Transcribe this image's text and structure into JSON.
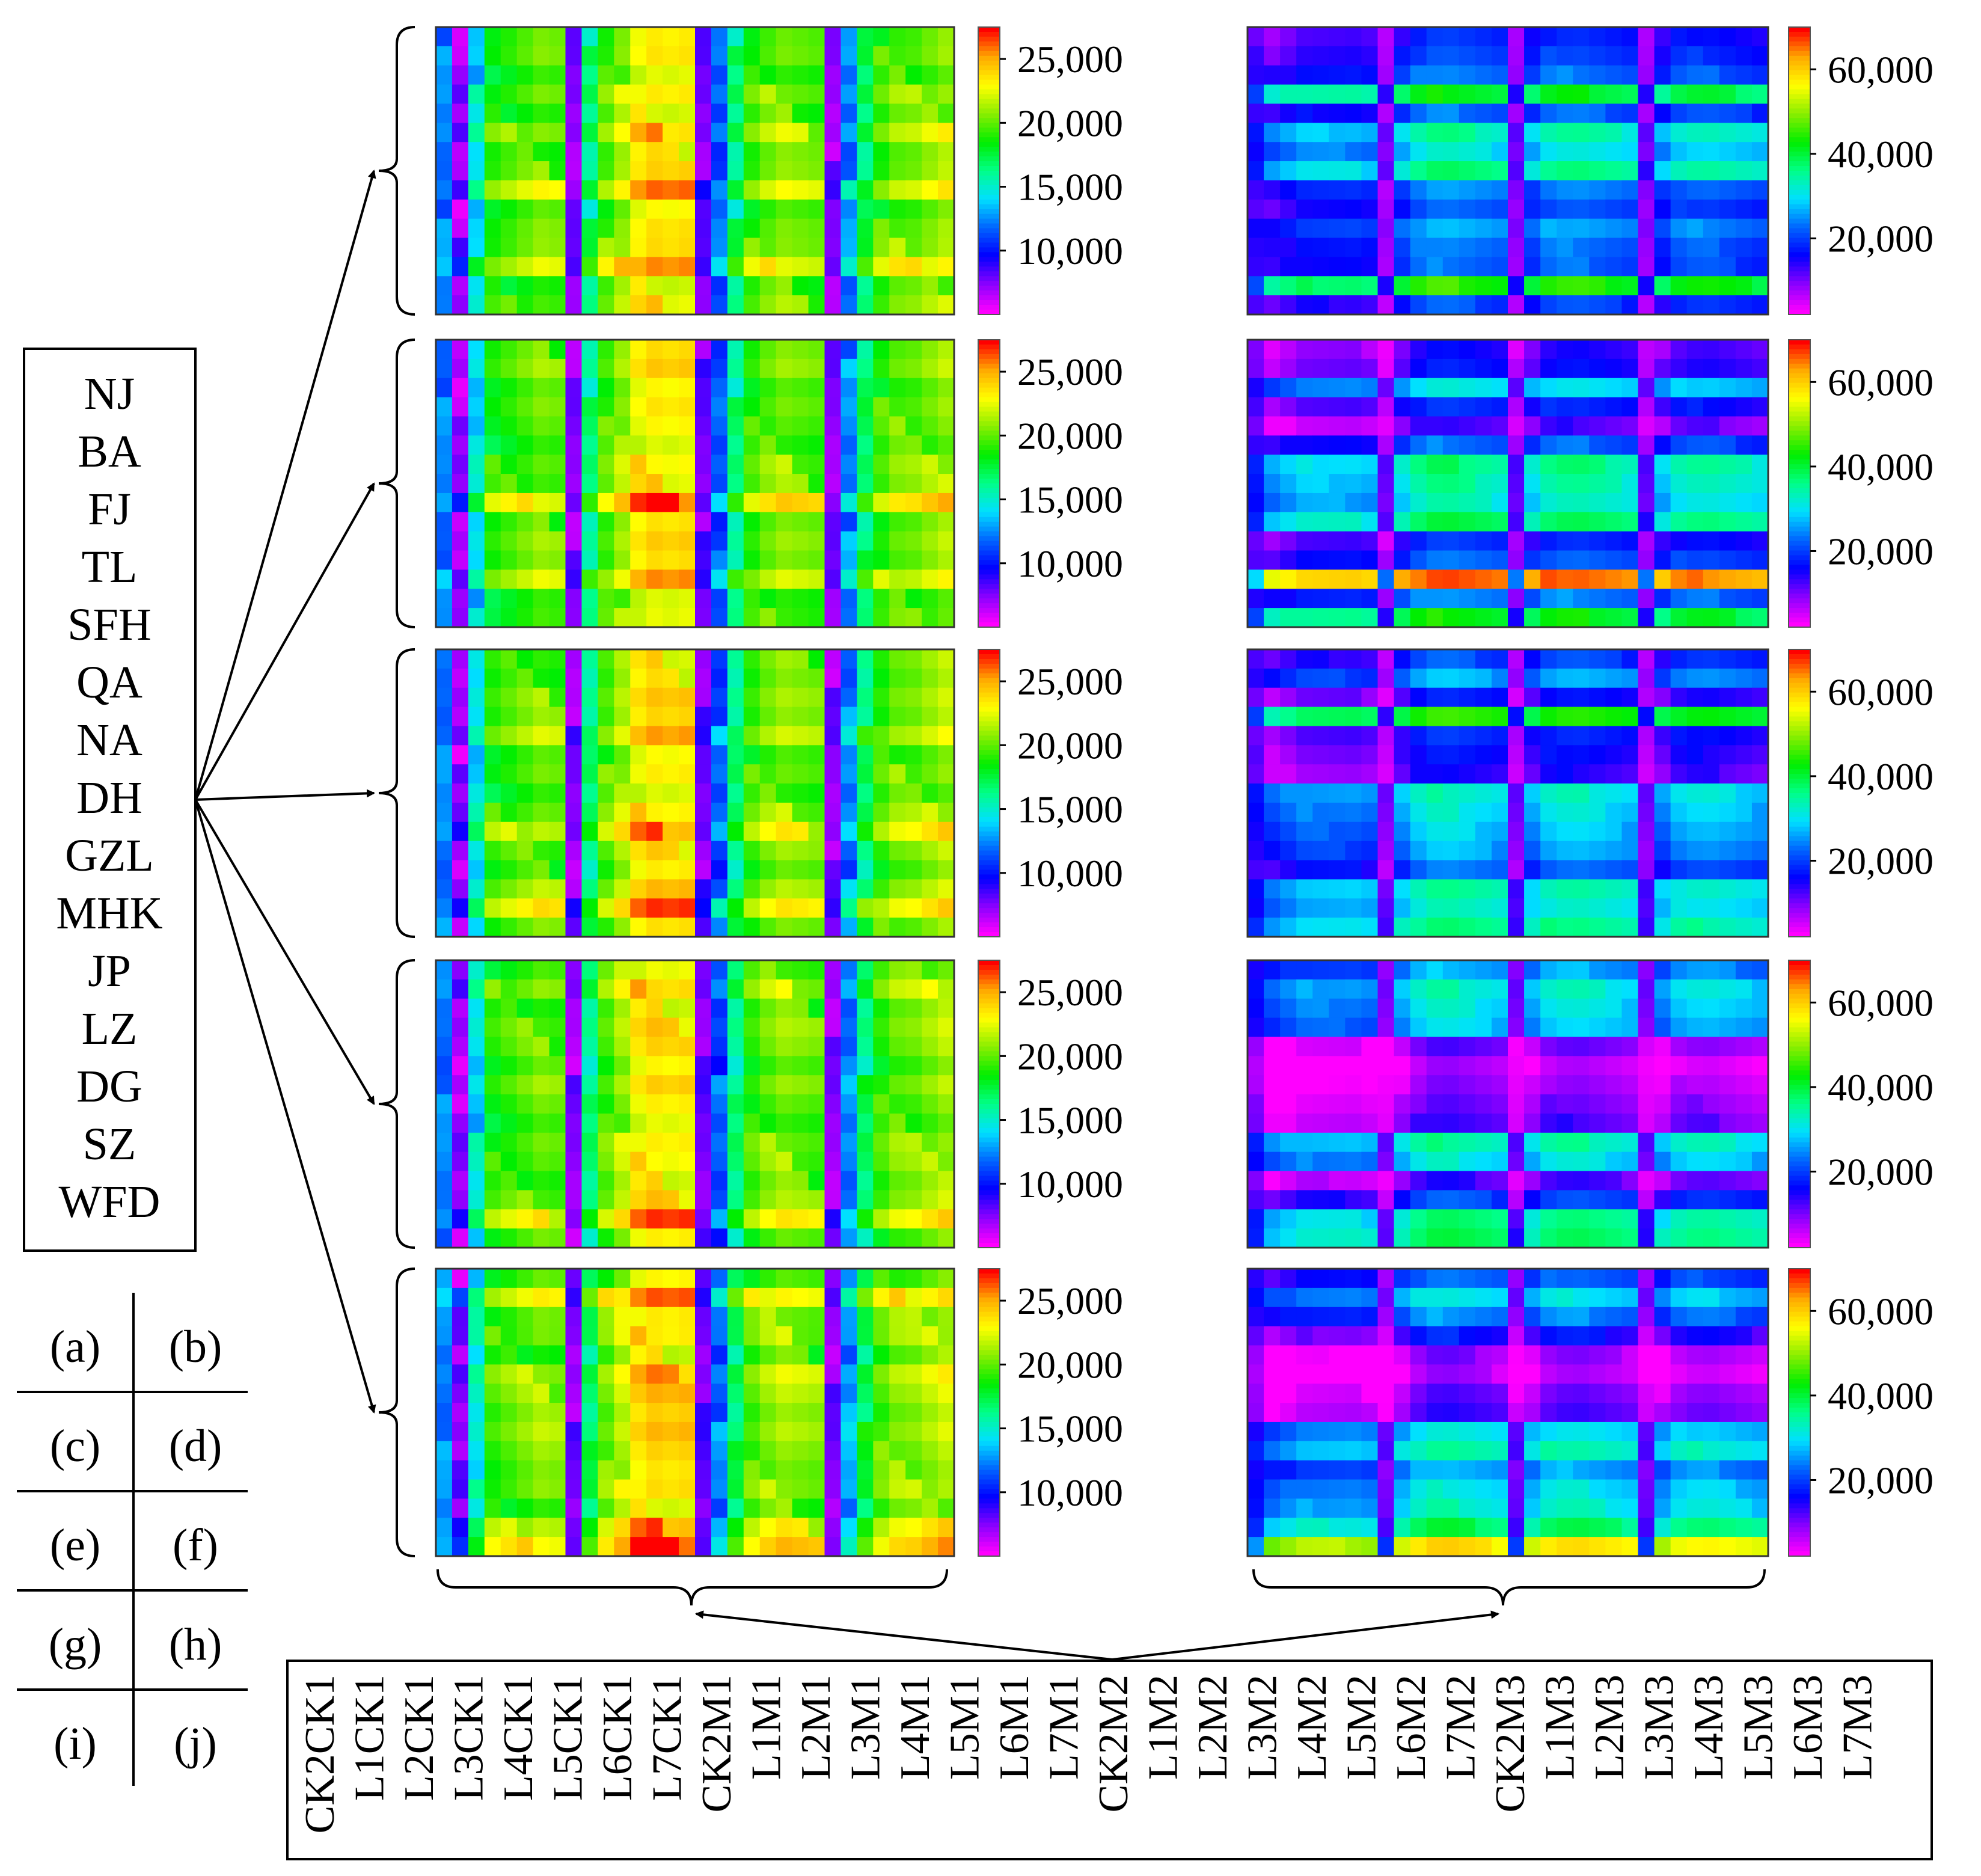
{
  "chart_data": {
    "type": "heatmap",
    "figure_title": "",
    "row_labels": [
      "NJ",
      "BA",
      "FJ",
      "TL",
      "SFH",
      "QA",
      "NA",
      "DH",
      "GZL",
      "MHK",
      "JP",
      "LZ",
      "DG",
      "SZ",
      "WFD"
    ],
    "column_labels": [
      "CK2CK1",
      "L1CK1",
      "L2CK1",
      "L3CK1",
      "L4CK1",
      "L5CK1",
      "L6CK1",
      "L7CK1",
      "CK2M1",
      "L1M1",
      "L2M1",
      "L3M1",
      "L4M1",
      "L5M1",
      "L6M1",
      "L7M1",
      "CK2M2",
      "L1M2",
      "L2M2",
      "L3M2",
      "L4M2",
      "L5M2",
      "L6M2",
      "L7M2",
      "CK2M3",
      "L1M3",
      "L2M3",
      "L3M3",
      "L4M3",
      "L5M3",
      "L6M3",
      "L7M3"
    ],
    "panel_grid": [
      [
        "(a)",
        "(b)"
      ],
      [
        "(c)",
        "(d)"
      ],
      [
        "(e)",
        "(f)"
      ],
      [
        "(g)",
        "(h)"
      ],
      [
        "(i)",
        "(j)"
      ]
    ],
    "colormap": [
      "#ff00ff",
      "#8800ff",
      "#0000ff",
      "#0066ff",
      "#00e0ff",
      "#00ff88",
      "#00ee00",
      "#88ee00",
      "#ffff00",
      "#ffaa00",
      "#ff0000"
    ],
    "left_panels": {
      "color_range": [
        5000,
        27500
      ],
      "colorbar_ticks": [
        [
          "25,000",
          "20,000",
          "15,000",
          "10,000"
        ],
        [
          "25,000",
          "20,000",
          "15,000",
          "10,000"
        ],
        [
          "25,000",
          "20,000",
          "15,000",
          "10,000"
        ],
        [
          "25,000",
          "20,000",
          "15,000",
          "10,000"
        ],
        [
          "25,000",
          "20,000",
          "15,000",
          "10,000"
        ]
      ],
      "tick_values": [
        25000,
        20000,
        15000,
        10000
      ],
      "pattern": {
        "column_base_values": [
          12000,
          6500,
          14000,
          18500,
          19000,
          19500,
          20000,
          19500,
          7000,
          16000,
          19500,
          21000,
          23000,
          23500,
          23000,
          23000,
          7500,
          11000,
          16000,
          19000,
          20000,
          20500,
          20000,
          19500,
          7000,
          12000,
          16500,
          19000,
          20000,
          20000,
          20500,
          21000
        ],
        "row_offsets": [
          [
            0,
            500,
            -500,
            800,
            -300,
            1500,
            -200,
            300,
            2500,
            -400,
            600,
            1000,
            3000,
            -500,
            400
          ],
          [
            0,
            800,
            -300,
            500,
            200,
            -400,
            600,
            300,
            3500,
            -200,
            700,
            400,
            2500,
            -600,
            -100
          ],
          [
            0,
            -300,
            700,
            400,
            2000,
            -200,
            500,
            -400,
            800,
            2500,
            300,
            -500,
            1200,
            3500,
            600
          ],
          [
            0,
            1500,
            -300,
            600,
            300,
            -500,
            900,
            200,
            -400,
            700,
            500,
            -200,
            600,
            3000,
            -300
          ],
          [
            0,
            3500,
            800,
            1000,
            -500,
            1800,
            1200,
            600,
            1500,
            1000,
            700,
            1200,
            -200,
            2500,
            4000
          ]
        ]
      }
    },
    "right_panels": {
      "color_range": [
        2000,
        70000
      ],
      "colorbar_ticks": [
        [
          "60,000",
          "40,000",
          "20,000"
        ],
        [
          "60,000",
          "40,000",
          "20,000"
        ],
        [
          "60,000",
          "40,000",
          "20,000"
        ],
        [
          "60,000",
          "40,000",
          "20,000"
        ],
        [
          "60,000",
          "40,000",
          "20,000"
        ]
      ],
      "tick_values": [
        60000,
        40000,
        20000
      ],
      "pattern": {
        "column_base_values": [
          14000,
          16000,
          18000,
          20000,
          20000,
          20000,
          20000,
          19000,
          8000,
          22000,
          26000,
          28000,
          28000,
          27000,
          26000,
          25000,
          9000,
          22000,
          26000,
          27000,
          27000,
          26000,
          25000,
          24000,
          9000,
          20000,
          24000,
          25000,
          25000,
          24000,
          23000,
          22000
        ],
        "row_offsets": [
          [
            -8000,
            -6000,
            -3000,
            15000,
            -4000,
            8000,
            4000,
            10000,
            -2000,
            -5000,
            0,
            -3000,
            -4000,
            18000,
            -6000
          ],
          [
            -12000,
            -10000,
            4000,
            -8000,
            -14000,
            -4000,
            10000,
            8000,
            6000,
            12000,
            -8000,
            -4000,
            40000,
            -2000,
            16000
          ],
          [
            -6000,
            0,
            -10000,
            18000,
            -8000,
            -10000,
            -12000,
            6000,
            4000,
            2000,
            0,
            -4000,
            8000,
            6000,
            10000
          ],
          [
            0,
            6000,
            4000,
            2000,
            -16000,
            -20000,
            -18000,
            -16000,
            -14000,
            8000,
            4000,
            -14000,
            -6000,
            10000,
            12000
          ],
          [
            -4000,
            4000,
            -2000,
            -10000,
            -18000,
            -20000,
            -16000,
            -14000,
            4000,
            8000,
            0,
            4000,
            6000,
            12000,
            32000
          ]
        ]
      }
    }
  }
}
